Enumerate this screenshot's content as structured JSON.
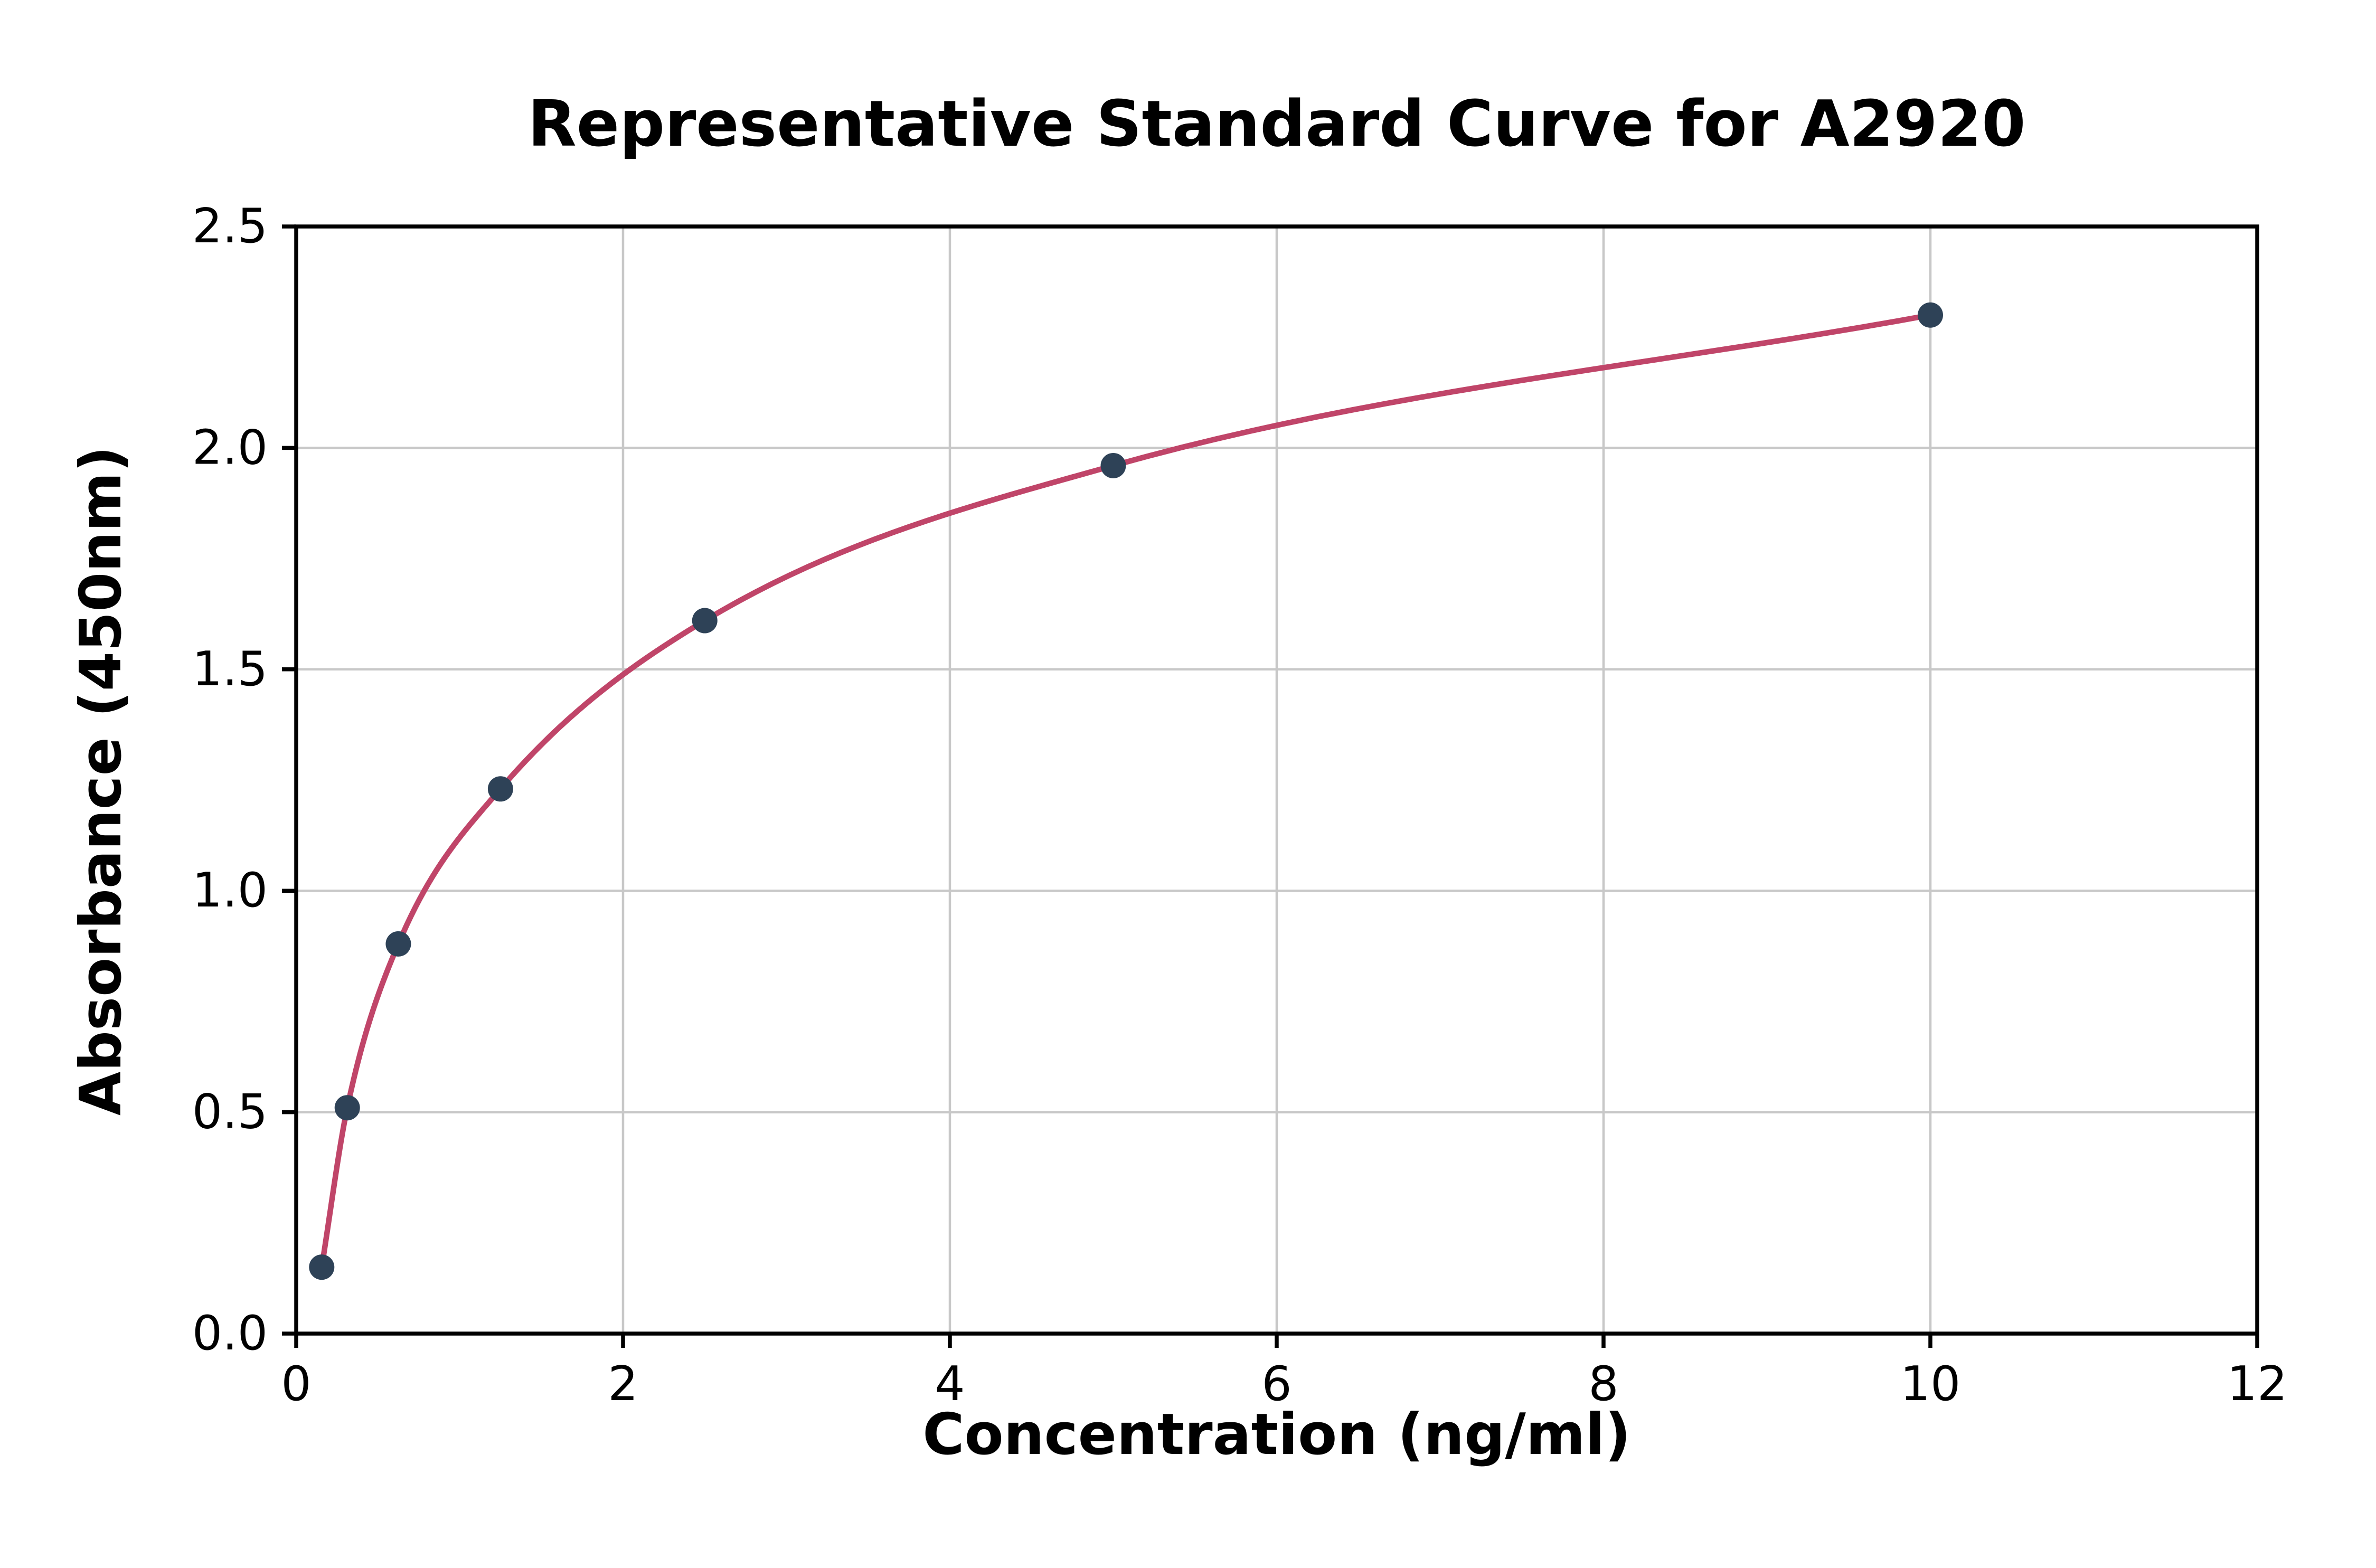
{
  "chart_data": {
    "type": "scatter",
    "title": "Representative Standard Curve for A2920",
    "xlabel": "Concentration (ng/ml)",
    "ylabel": "Absorbance (450nm)",
    "xlim": [
      0,
      12
    ],
    "ylim": [
      0,
      2.5
    ],
    "xticks": [
      0,
      2,
      4,
      6,
      8,
      10,
      12
    ],
    "xtick_labels": [
      "0",
      "2",
      "4",
      "6",
      "8",
      "10",
      "12"
    ],
    "yticks": [
      0,
      0.5,
      1.0,
      1.5,
      2.0,
      2.5
    ],
    "ytick_labels": [
      "0.0",
      "0.5",
      "1.0",
      "1.5",
      "2.0",
      "2.5"
    ],
    "grid": true,
    "legend": "none",
    "points": {
      "x": [
        0.156,
        0.3125,
        0.625,
        1.25,
        2.5,
        5,
        10
      ],
      "y": [
        0.15,
        0.51,
        0.88,
        1.23,
        1.61,
        1.96,
        2.3
      ]
    },
    "curve_fit": "smooth monotone curve through points",
    "colors": {
      "curve": "#c04569",
      "points": "#2e4257",
      "grid": "#c8c8c8",
      "frame": "#000000",
      "background": "#ffffff"
    }
  }
}
